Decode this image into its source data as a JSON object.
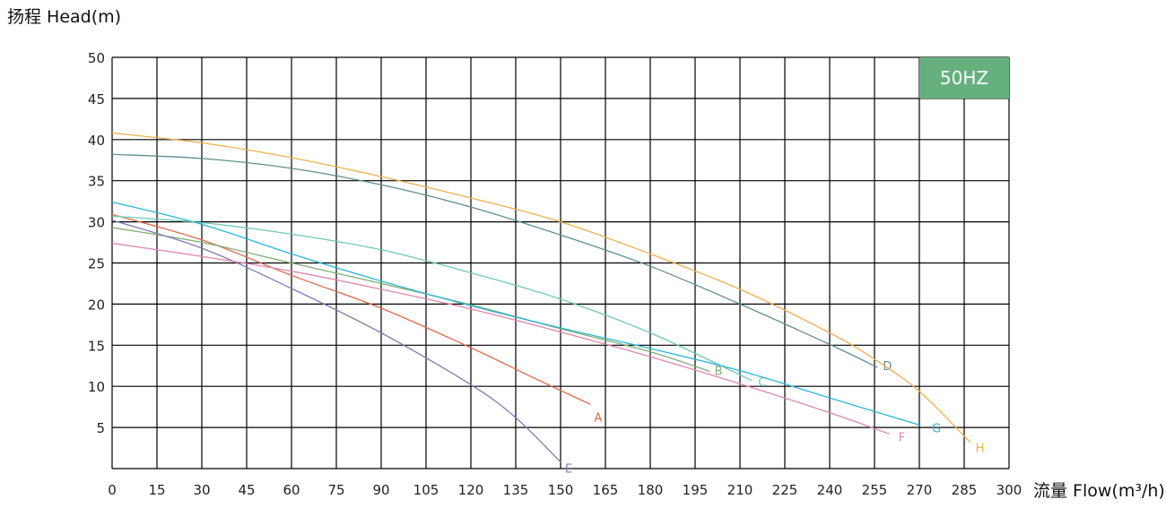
{
  "chart_data": {
    "type": "line",
    "ylabel": "扬程 Head(m)",
    "xlabel": "流量 Flow(m³/h)",
    "xlim": [
      0,
      300
    ],
    "ylim": [
      0,
      50
    ],
    "x_ticks": [
      0,
      15,
      30,
      45,
      60,
      75,
      90,
      105,
      120,
      135,
      150,
      165,
      180,
      195,
      210,
      225,
      240,
      255,
      270,
      285,
      300
    ],
    "y_ticks": [
      5,
      10,
      15,
      20,
      25,
      30,
      35,
      40,
      45,
      50
    ],
    "grid": true,
    "badge": "50HZ",
    "series": [
      {
        "name": "A",
        "color": "#e06a4e",
        "x": [
          0,
          30,
          60,
          90,
          120,
          140,
          160
        ],
        "y": [
          30.9,
          27.8,
          23.5,
          19.5,
          14.7,
          11.2,
          7.8
        ]
      },
      {
        "name": "B",
        "color": "#7fae72",
        "x": [
          0,
          30,
          60,
          90,
          120,
          150,
          180,
          200
        ],
        "y": [
          29.3,
          27.5,
          25.0,
          22.5,
          19.9,
          17.0,
          14.2,
          11.8
        ]
      },
      {
        "name": "C",
        "color": "#6dcab0",
        "x": [
          0,
          30,
          60,
          90,
          120,
          150,
          180,
          214
        ],
        "y": [
          30.7,
          29.9,
          28.5,
          26.6,
          23.8,
          20.6,
          16.5,
          10.7
        ]
      },
      {
        "name": "D",
        "color": "#5f8f8f",
        "x": [
          0,
          30,
          60,
          90,
          120,
          150,
          180,
          210,
          240,
          256
        ],
        "y": [
          38.2,
          37.7,
          36.5,
          34.5,
          31.8,
          28.4,
          24.6,
          20.0,
          15.1,
          12.3
        ]
      },
      {
        "name": "E",
        "color": "#7c7cb5",
        "x": [
          0,
          30,
          60,
          90,
          120,
          135,
          150
        ],
        "y": [
          30.2,
          26.8,
          21.9,
          16.5,
          10.2,
          6.2,
          0.8
        ]
      },
      {
        "name": "F",
        "color": "#e086ad",
        "x": [
          0,
          30,
          60,
          90,
          120,
          150,
          180,
          210,
          240,
          260
        ],
        "y": [
          27.4,
          25.8,
          24.0,
          21.8,
          19.4,
          16.6,
          13.6,
          10.3,
          6.8,
          4.2
        ]
      },
      {
        "name": "G",
        "color": "#29b6d8",
        "x": [
          0,
          30,
          60,
          90,
          120,
          150,
          180,
          210,
          240,
          270
        ],
        "y": [
          32.4,
          29.7,
          26.1,
          22.8,
          19.8,
          17.1,
          14.6,
          11.9,
          8.6,
          5.3
        ]
      },
      {
        "name": "H",
        "color": "#f0b04a",
        "x": [
          0,
          30,
          60,
          90,
          120,
          150,
          180,
          210,
          240,
          255,
          270,
          287
        ],
        "y": [
          40.8,
          39.6,
          37.8,
          35.5,
          32.9,
          30.0,
          26.1,
          21.8,
          16.5,
          13.3,
          9.4,
          3.2
        ]
      }
    ]
  }
}
